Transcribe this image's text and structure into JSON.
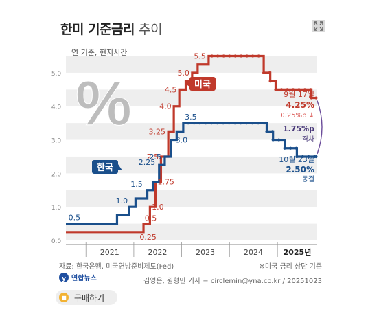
{
  "title_main": "한미 기준금리",
  "title_sub": "추이",
  "note_basis": "연 기준, 현지시간",
  "icons": {
    "expand": "expand-icon",
    "cart": "cart-icon",
    "logo": "yonhap-logo"
  },
  "chart_data": {
    "type": "line",
    "y_range": [
      0,
      5.9
    ],
    "y_ticks": [
      "5.0",
      "4.0",
      "3.0",
      "2.0",
      "1.0",
      "0.0"
    ],
    "x_range": [
      "2020-08-01",
      "2025-10-31"
    ],
    "years": [
      "2021",
      "2022",
      "2023",
      "2024",
      "2025년"
    ],
    "grid": true,
    "series": [
      {
        "name": "미국",
        "color": "#c0392b",
        "steps": [
          {
            "date": "2020-08-01",
            "value": 0.25
          },
          {
            "date": "2022-03-16",
            "value": 0.5
          },
          {
            "date": "2022-05-04",
            "value": 1.0
          },
          {
            "date": "2022-06-15",
            "value": 1.75
          },
          {
            "date": "2022-07-27",
            "value": 2.5
          },
          {
            "date": "2022-09-21",
            "value": 3.25
          },
          {
            "date": "2022-11-02",
            "value": 4.0
          },
          {
            "date": "2022-12-14",
            "value": 4.5
          },
          {
            "date": "2023-02-01",
            "value": 4.75
          },
          {
            "date": "2023-03-22",
            "value": 5.0
          },
          {
            "date": "2023-05-03",
            "value": 5.25
          },
          {
            "date": "2023-07-26",
            "value": 5.5
          },
          {
            "date": "2024-09-18",
            "value": 5.0
          },
          {
            "date": "2024-11-07",
            "value": 4.75
          },
          {
            "date": "2024-12-18",
            "value": 4.5
          },
          {
            "date": "2025-09-17",
            "value": 4.25
          },
          {
            "date": "2025-10-23",
            "value": 4.25
          }
        ],
        "labels": [
          "0.25",
          "0.5",
          "1.0",
          "1.75",
          "2.5",
          "3.25",
          "4.0",
          "4.5",
          "5.0",
          "5.5"
        ]
      },
      {
        "name": "한국",
        "color": "#1a4f8b",
        "steps": [
          {
            "date": "2020-08-01",
            "value": 0.5
          },
          {
            "date": "2021-08-26",
            "value": 0.75
          },
          {
            "date": "2021-11-25",
            "value": 1.0
          },
          {
            "date": "2022-01-14",
            "value": 1.25
          },
          {
            "date": "2022-04-14",
            "value": 1.5
          },
          {
            "date": "2022-05-26",
            "value": 1.75
          },
          {
            "date": "2022-07-13",
            "value": 2.25
          },
          {
            "date": "2022-08-25",
            "value": 2.5
          },
          {
            "date": "2022-10-12",
            "value": 3.0
          },
          {
            "date": "2022-11-24",
            "value": 3.25
          },
          {
            "date": "2023-01-13",
            "value": 3.5
          },
          {
            "date": "2024-10-11",
            "value": 3.25
          },
          {
            "date": "2024-11-28",
            "value": 3.0
          },
          {
            "date": "2025-02-25",
            "value": 2.75
          },
          {
            "date": "2025-05-29",
            "value": 2.5
          },
          {
            "date": "2025-10-23",
            "value": 2.5
          }
        ],
        "labels": [
          "0.5",
          "1.0",
          "1.5",
          "2.25",
          "2.5",
          "3.0",
          "3.5"
        ]
      }
    ],
    "annotations": {
      "us_date": "9월 17일",
      "us_value": "4.25%",
      "us_change": "0.25%p ↓",
      "gap_value": "1.75%p",
      "gap_label": "격차",
      "kr_date": "10월 23일",
      "kr_value": "2.50%",
      "kr_status": "동결"
    }
  },
  "source": "자료: 한국은행, 미국연방준비제도(Fed)",
  "footnote": "※미국 금리 상단 기준",
  "credit": "김영은, 원형민 기자 = circlemin@yna.co.kr / 20251023",
  "logo_text": "연합뉴스",
  "buy_button": "구매하기"
}
